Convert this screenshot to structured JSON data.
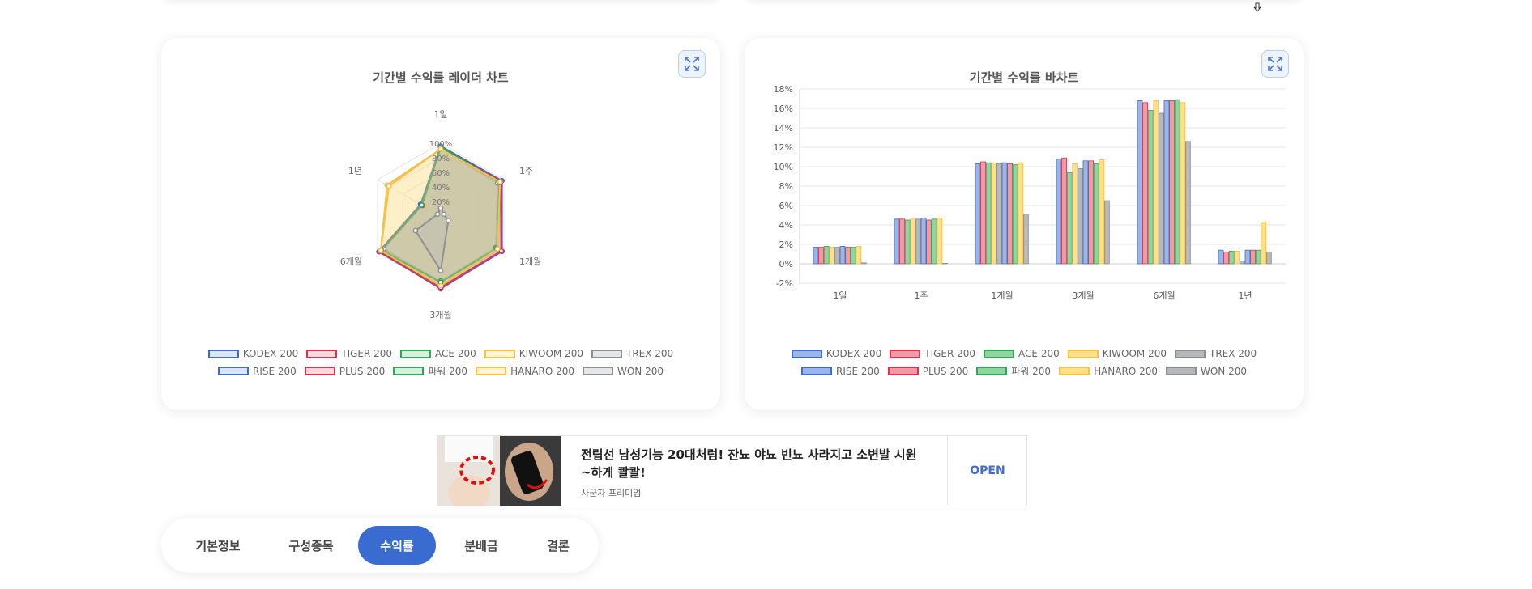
{
  "radar_card": {
    "title": "기간별 수익률 레이더 차트"
  },
  "bar_card": {
    "title": "기간별 수익률 바차트"
  },
  "radar_ticks": [
    "100%",
    "80%",
    "60%",
    "40%",
    "20%"
  ],
  "bar_categories": [
    "1일",
    "1주",
    "1개월",
    "3개월",
    "6개월",
    "1년"
  ],
  "series_colors": [
    {
      "name": "KODEX 200",
      "border": "#4569c4",
      "fill": "#9ab6e6"
    },
    {
      "name": "TIGER 200",
      "border": "#d9344f",
      "fill": "#ee9ba6"
    },
    {
      "name": "ACE 200",
      "border": "#34a55a",
      "fill": "#92d3a0"
    },
    {
      "name": "KIWOOM 200",
      "border": "#f2c14e",
      "fill": "#fddf8c"
    },
    {
      "name": "TREX 200",
      "border": "#8d8f92",
      "fill": "#b5b7b9"
    },
    {
      "name": "RISE 200",
      "border": "#4569c4",
      "fill": "#9ab6e6"
    },
    {
      "name": "PLUS 200",
      "border": "#d9344f",
      "fill": "#ee9ba6"
    },
    {
      "name": "파워 200",
      "border": "#34a55a",
      "fill": "#92d3a0"
    },
    {
      "name": "HANARO 200",
      "border": "#f2c14e",
      "fill": "#fddf8c"
    },
    {
      "name": "WON 200",
      "border": "#8d8f92",
      "fill": "#b5b7b9"
    }
  ],
  "chart_data": [
    {
      "type": "radar",
      "title": "기간별 수익률 레이더 차트",
      "categories": [
        "1일",
        "1주",
        "1개월",
        "3개월",
        "6개월",
        "1년"
      ],
      "rlim": [
        0,
        100
      ],
      "rticks": [
        "100%",
        "80%",
        "60%",
        "40%",
        "20%"
      ],
      "legend": "bottom",
      "series": [
        {
          "name": "KODEX 200",
          "values": [
            96,
            97,
            97,
            99,
            98,
            32
          ]
        },
        {
          "name": "TIGER 200",
          "values": [
            94,
            95,
            96,
            100,
            97,
            29
          ]
        },
        {
          "name": "ACE 200",
          "values": [
            95,
            92,
            87,
            89,
            93,
            30
          ]
        },
        {
          "name": "KIWOOM 200",
          "values": [
            92,
            94,
            91,
            95,
            95,
            85
          ]
        },
        {
          "name": "TREX 200",
          "values": [
            93,
            90,
            88,
            91,
            90,
            30
          ]
        },
        {
          "name": "RISE 200",
          "values": [
            95,
            96,
            97,
            99,
            97,
            31
          ]
        },
        {
          "name": "PLUS 200",
          "values": [
            94,
            95,
            96,
            98,
            97,
            30
          ]
        },
        {
          "name": "파워 200",
          "values": [
            95,
            93,
            89,
            91,
            94,
            30
          ]
        },
        {
          "name": "HANARO 200",
          "values": [
            92,
            94,
            90,
            96,
            95,
            82
          ]
        },
        {
          "name": "WON 200",
          "values": [
            11,
            5,
            12,
            75,
            40,
            5
          ]
        }
      ]
    },
    {
      "type": "bar",
      "title": "기간별 수익률 바차트",
      "categories": [
        "1일",
        "1주",
        "1개월",
        "3개월",
        "6개월",
        "1년"
      ],
      "ylim": [
        -2,
        18
      ],
      "yticks": [
        "-2%",
        "0%",
        "2%",
        "4%",
        "6%",
        "8%",
        "10%",
        "12%",
        "14%",
        "16%",
        "18%"
      ],
      "grid": true,
      "legend": "bottom",
      "series": [
        {
          "name": "KODEX 200",
          "values": [
            1.7,
            4.6,
            10.3,
            10.8,
            16.8,
            1.4
          ]
        },
        {
          "name": "TIGER 200",
          "values": [
            1.7,
            4.6,
            10.5,
            10.9,
            16.6,
            1.2
          ]
        },
        {
          "name": "ACE 200",
          "values": [
            1.8,
            4.5,
            10.4,
            9.4,
            15.8,
            1.3
          ]
        },
        {
          "name": "KIWOOM 200",
          "values": [
            1.7,
            4.6,
            10.4,
            10.3,
            16.8,
            1.3
          ]
        },
        {
          "name": "TREX 200",
          "values": [
            1.7,
            4.6,
            10.3,
            9.8,
            15.5,
            0.3
          ]
        },
        {
          "name": "RISE 200",
          "values": [
            1.8,
            4.7,
            10.4,
            10.6,
            16.8,
            1.4
          ]
        },
        {
          "name": "PLUS 200",
          "values": [
            1.7,
            4.5,
            10.3,
            10.6,
            16.8,
            1.4
          ]
        },
        {
          "name": "파워 200",
          "values": [
            1.7,
            4.6,
            10.2,
            10.3,
            16.9,
            1.4
          ]
        },
        {
          "name": "HANARO 200",
          "values": [
            1.8,
            4.7,
            10.4,
            10.7,
            16.6,
            4.3
          ]
        },
        {
          "name": "WON 200",
          "values": [
            0.1,
            0.05,
            5.1,
            6.5,
            12.6,
            1.2
          ]
        }
      ]
    }
  ],
  "ad": {
    "headline": "전립선 남성기능 20대처럼! 잔뇨 야뇨 빈뇨 사라지고 소변발 시원~하게 콸콸!",
    "sponsor": "사군자 프리미엄",
    "cta": "OPEN"
  },
  "tabs": [
    {
      "label": "기본정보",
      "active": false
    },
    {
      "label": "구성종목",
      "active": false
    },
    {
      "label": "수익률",
      "active": true
    },
    {
      "label": "분배금",
      "active": false
    },
    {
      "label": "결론",
      "active": false
    }
  ]
}
